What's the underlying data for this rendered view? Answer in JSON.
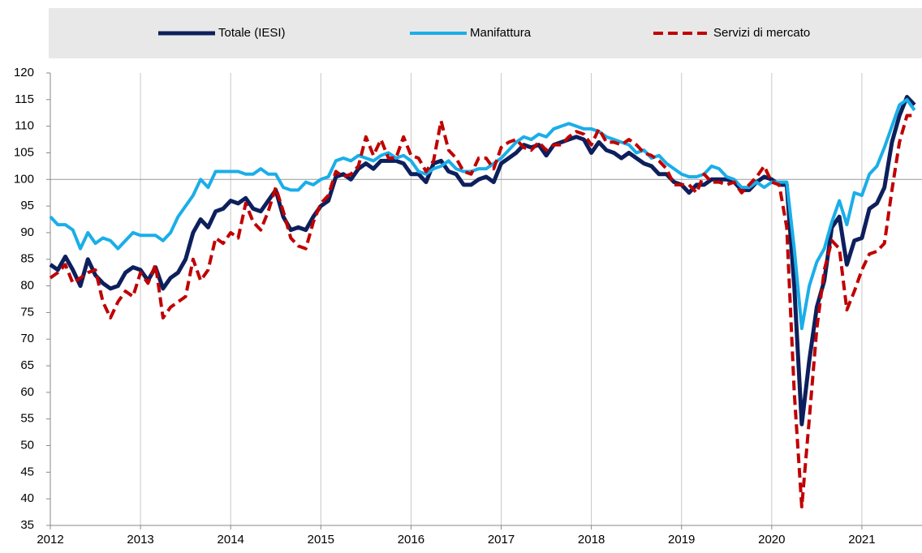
{
  "chart_data": {
    "type": "line",
    "categories": [
      "2012",
      null,
      null,
      null,
      null,
      null,
      null,
      null,
      null,
      null,
      null,
      null,
      "2013",
      null,
      null,
      null,
      null,
      null,
      null,
      null,
      null,
      null,
      null,
      null,
      "2014",
      null,
      null,
      null,
      null,
      null,
      null,
      null,
      null,
      null,
      null,
      null,
      "2015",
      null,
      null,
      null,
      null,
      null,
      null,
      null,
      null,
      null,
      null,
      null,
      "2016",
      null,
      null,
      null,
      null,
      null,
      null,
      null,
      null,
      null,
      null,
      null,
      "2017",
      null,
      null,
      null,
      null,
      null,
      null,
      null,
      null,
      null,
      null,
      null,
      "2018",
      null,
      null,
      null,
      null,
      null,
      null,
      null,
      null,
      null,
      null,
      null,
      "2019",
      null,
      null,
      null,
      null,
      null,
      null,
      null,
      null,
      null,
      null,
      null,
      "2020",
      null,
      null,
      null,
      null,
      null,
      null,
      null,
      null,
      null,
      null,
      null,
      "2021",
      null,
      null,
      null,
      null,
      null,
      null,
      null
    ],
    "series": [
      {
        "name": "Totale (IESI)",
        "color": "#0d1f5c",
        "linestyle": "solid",
        "width": 5,
        "values": [
          84,
          83,
          85.5,
          83,
          80,
          85,
          82,
          80.5,
          79.5,
          80,
          82.5,
          83.5,
          83,
          81,
          83.5,
          79.5,
          81.5,
          82.5,
          85,
          90,
          92.5,
          91,
          94,
          94.5,
          96,
          95.5,
          96.5,
          94.5,
          94,
          96,
          98,
          93,
          90.5,
          91,
          90.5,
          93,
          95,
          96,
          100.5,
          101,
          100,
          102,
          103,
          102,
          103.5,
          103.5,
          103.5,
          103,
          101,
          101,
          99.5,
          103,
          103.5,
          101.5,
          101,
          99,
          99,
          100,
          100.5,
          99.5,
          103,
          104,
          105,
          106.5,
          106,
          106.5,
          104.5,
          106.5,
          107,
          107.5,
          108,
          107.5,
          105,
          107,
          105.5,
          105,
          104,
          105,
          104,
          103,
          102.5,
          101,
          101,
          99.5,
          99,
          97.5,
          99,
          99,
          100,
          100,
          100,
          99.5,
          98,
          98,
          99.5,
          100.5,
          100,
          99,
          99,
          80,
          54,
          66,
          76,
          81,
          91,
          93,
          84,
          88.5,
          89,
          94.5,
          95.5,
          98.5,
          107,
          112,
          115.5,
          114
        ]
      },
      {
        "name": "Manifattura",
        "color": "#1aaee8",
        "linestyle": "solid",
        "width": 4,
        "values": [
          93,
          91.5,
          91.5,
          90.5,
          87,
          90,
          88,
          89,
          88.5,
          87,
          88.5,
          90,
          89.5,
          89.5,
          89.5,
          88.5,
          90,
          93,
          95,
          97,
          100,
          98.5,
          101.5,
          101.5,
          101.5,
          101.5,
          101,
          101,
          102,
          101,
          101,
          98.5,
          98,
          98,
          99.5,
          99,
          100,
          100.5,
          103.5,
          104,
          103.5,
          104.5,
          104,
          103.5,
          104.5,
          105,
          104,
          104.5,
          103.5,
          101.5,
          101,
          102,
          102.5,
          103.5,
          102,
          101.5,
          101.5,
          102,
          102,
          103,
          104,
          105.5,
          107,
          108,
          107.5,
          108.5,
          108,
          109.5,
          110,
          110.5,
          110,
          109.5,
          109.5,
          109,
          108,
          107.5,
          107,
          106.5,
          105,
          105.5,
          104,
          104.5,
          103,
          102,
          101,
          100.5,
          100.5,
          101,
          102.5,
          102,
          100.5,
          100,
          98.5,
          98.5,
          99.5,
          98.5,
          99.5,
          99.5,
          99.5,
          87,
          72,
          80,
          84.5,
          87,
          92,
          96,
          91.5,
          97.5,
          97,
          101,
          102.5,
          106,
          110,
          114,
          115,
          113
        ]
      },
      {
        "name": "Servizi di mercato",
        "color": "#c00000",
        "linestyle": "dashed",
        "width": 4,
        "values": [
          81.5,
          82.5,
          84,
          80.5,
          81.5,
          82.5,
          83,
          77,
          74,
          77,
          79,
          78,
          82.5,
          80.5,
          84,
          74,
          76,
          77,
          78,
          85,
          81,
          83,
          89,
          88,
          90,
          89,
          95.5,
          92,
          90.5,
          94,
          98.5,
          94,
          89,
          87.5,
          87,
          92,
          95.5,
          97,
          101.5,
          100.5,
          101,
          102.5,
          108,
          104.5,
          107.5,
          104,
          104,
          108,
          104.5,
          104,
          101.5,
          103.5,
          111,
          105.5,
          104,
          101.5,
          101,
          104,
          104,
          102,
          106,
          107,
          107.5,
          106,
          105.5,
          107,
          105.5,
          106.5,
          106.5,
          108,
          109,
          108.5,
          106.5,
          109.5,
          107,
          107,
          106.5,
          107.5,
          106.5,
          105,
          104.5,
          103.5,
          102,
          99,
          99,
          99,
          97.5,
          101,
          99.5,
          99.5,
          99,
          99.5,
          97.5,
          99,
          100.5,
          102.5,
          99.5,
          99,
          91,
          60,
          38.5,
          55,
          72,
          83,
          88.5,
          87,
          75.5,
          79,
          83,
          86,
          86.5,
          88,
          98,
          107,
          112,
          112
        ]
      }
    ],
    "ylim": [
      35,
      120
    ],
    "yticks": [
      35,
      40,
      45,
      50,
      55,
      60,
      65,
      70,
      75,
      80,
      85,
      90,
      95,
      100,
      105,
      110,
      115,
      120
    ],
    "hline": 100,
    "grid": "x",
    "legend": "top"
  }
}
